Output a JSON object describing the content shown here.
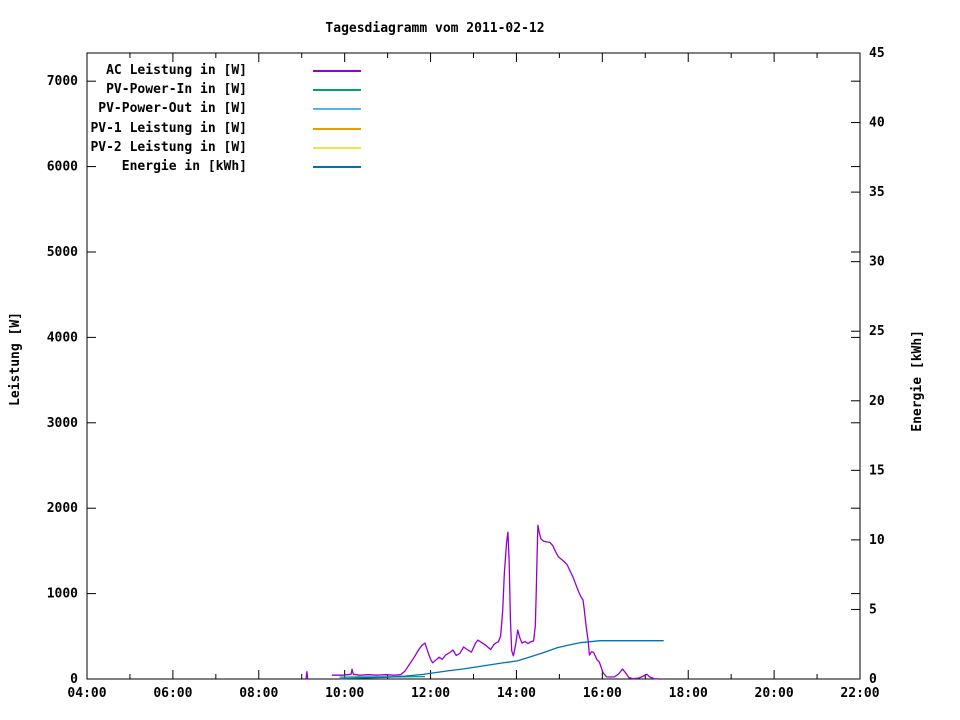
{
  "title": "Tagesdiagramm vom 2011-02-12",
  "axes": {
    "left_label": "Leistung [W]",
    "right_label": "Energie [kWh]",
    "axis_color": "#000000",
    "background": "#ffffff"
  },
  "chart_data": {
    "type": "line",
    "title": "Tagesdiagramm vom 2011-02-12",
    "xlabel": "",
    "x_unit": "time of day",
    "x_range_hours": [
      4,
      22
    ],
    "x_major_ticks_hours": [
      4,
      6,
      8,
      10,
      12,
      14,
      16,
      18,
      20,
      22
    ],
    "x_tick_labels": [
      "04:00",
      "06:00",
      "08:00",
      "10:00",
      "12:00",
      "14:00",
      "16:00",
      "18:00",
      "20:00",
      "22:00"
    ],
    "x_minor_ticks_hours": [
      5,
      7,
      9,
      11,
      13,
      15,
      17,
      19,
      21
    ],
    "y_left": {
      "label": "Leistung [W]",
      "range": [
        0,
        7330
      ],
      "ticks": [
        0,
        1000,
        2000,
        3000,
        4000,
        5000,
        6000,
        7000
      ]
    },
    "y_right": {
      "label": "Energie [kWh]",
      "range": [
        0,
        45
      ],
      "ticks": [
        0,
        5,
        10,
        15,
        20,
        25,
        30,
        35,
        40,
        45
      ]
    },
    "grid": false,
    "legend_position": "top-left-inside",
    "series": [
      {
        "name": "AC Leistung in [W]",
        "color": "#9400d3",
        "axis": "left",
        "points": [
          [
            9.1,
            0
          ],
          [
            9.12,
            85
          ],
          [
            9.14,
            0
          ],
          null,
          [
            9.7,
            45
          ],
          [
            9.95,
            45
          ],
          [
            10.05,
            50
          ],
          [
            10.15,
            55
          ],
          [
            10.17,
            115
          ],
          [
            10.2,
            55
          ],
          [
            10.35,
            45
          ],
          [
            10.55,
            50
          ],
          [
            10.75,
            45
          ],
          [
            10.95,
            50
          ],
          [
            11.15,
            45
          ],
          [
            11.3,
            50
          ],
          [
            11.4,
            90
          ],
          [
            11.5,
            165
          ],
          [
            11.58,
            225
          ],
          [
            11.65,
            280
          ],
          [
            11.72,
            340
          ],
          [
            11.8,
            395
          ],
          [
            11.87,
            420
          ],
          [
            11.93,
            330
          ],
          [
            12.0,
            230
          ],
          [
            12.05,
            190
          ],
          [
            12.13,
            225
          ],
          [
            12.2,
            255
          ],
          [
            12.27,
            230
          ],
          [
            12.35,
            280
          ],
          [
            12.45,
            310
          ],
          [
            12.52,
            340
          ],
          [
            12.6,
            275
          ],
          [
            12.68,
            300
          ],
          [
            12.77,
            375
          ],
          [
            12.85,
            345
          ],
          [
            12.95,
            315
          ],
          [
            13.05,
            420
          ],
          [
            13.1,
            455
          ],
          [
            13.18,
            430
          ],
          [
            13.27,
            400
          ],
          [
            13.33,
            375
          ],
          [
            13.4,
            345
          ],
          [
            13.47,
            400
          ],
          [
            13.53,
            425
          ],
          [
            13.58,
            435
          ],
          [
            13.63,
            500
          ],
          [
            13.68,
            800
          ],
          [
            13.72,
            1250
          ],
          [
            13.77,
            1600
          ],
          [
            13.8,
            1720
          ],
          [
            13.83,
            1400
          ],
          [
            13.86,
            700
          ],
          [
            13.89,
            330
          ],
          [
            13.93,
            270
          ],
          [
            13.98,
            400
          ],
          [
            14.03,
            574
          ],
          [
            14.08,
            480
          ],
          [
            14.13,
            420
          ],
          [
            14.2,
            440
          ],
          [
            14.27,
            415
          ],
          [
            14.33,
            435
          ],
          [
            14.4,
            445
          ],
          [
            14.44,
            620
          ],
          [
            14.46,
            1000
          ],
          [
            14.48,
            1450
          ],
          [
            14.5,
            1800
          ],
          [
            14.53,
            1720
          ],
          [
            14.57,
            1640
          ],
          [
            14.63,
            1615
          ],
          [
            14.7,
            1605
          ],
          [
            14.78,
            1600
          ],
          [
            14.85,
            1560
          ],
          [
            14.92,
            1480
          ],
          [
            14.98,
            1430
          ],
          [
            15.05,
            1400
          ],
          [
            15.12,
            1370
          ],
          [
            15.18,
            1340
          ],
          [
            15.25,
            1265
          ],
          [
            15.32,
            1190
          ],
          [
            15.38,
            1110
          ],
          [
            15.45,
            1020
          ],
          [
            15.5,
            965
          ],
          [
            15.55,
            925
          ],
          [
            15.58,
            810
          ],
          [
            15.62,
            630
          ],
          [
            15.65,
            515
          ],
          [
            15.67,
            445
          ],
          [
            15.7,
            281
          ],
          [
            15.75,
            320
          ],
          [
            15.8,
            310
          ],
          [
            15.87,
            230
          ],
          [
            15.93,
            199
          ],
          [
            16.02,
            70
          ],
          [
            16.1,
            25
          ],
          [
            16.2,
            23
          ],
          [
            16.28,
            25
          ],
          [
            16.38,
            60
          ],
          [
            16.47,
            117
          ],
          [
            16.53,
            80
          ],
          [
            16.62,
            15
          ],
          [
            16.72,
            5
          ],
          [
            16.85,
            10
          ],
          [
            16.98,
            40
          ],
          [
            17.04,
            55
          ],
          [
            17.1,
            25
          ],
          [
            17.2,
            5
          ],
          [
            17.3,
            2
          ]
        ]
      },
      {
        "name": "PV-Power-In in [W]",
        "color": "#009e73",
        "axis": "left",
        "points": [
          [
            9.88,
            22
          ],
          [
            10.3,
            25
          ],
          [
            10.8,
            25
          ],
          [
            11.3,
            25
          ],
          [
            11.87,
            28
          ]
        ]
      },
      {
        "name": "PV-Power-Out in [W]",
        "color": "#56b4e9",
        "axis": "left",
        "points": []
      },
      {
        "name": "PV-1 Leistung in [W]",
        "color": "#e69f00",
        "axis": "left",
        "points": []
      },
      {
        "name": "PV-2 Leistung in [W]",
        "color": "#f0e442",
        "axis": "left",
        "points": []
      },
      {
        "name": "Energie in [kWh]",
        "color": "#0072b2",
        "axis": "right",
        "points": [
          [
            9.9,
            0.02
          ],
          [
            10.5,
            0.08
          ],
          [
            11.0,
            0.13
          ],
          [
            11.4,
            0.2
          ],
          [
            11.83,
            0.33
          ],
          [
            12.05,
            0.43
          ],
          [
            12.4,
            0.58
          ],
          [
            12.75,
            0.72
          ],
          [
            13.08,
            0.87
          ],
          [
            13.38,
            1.01
          ],
          [
            13.68,
            1.16
          ],
          [
            14.02,
            1.3
          ],
          [
            14.32,
            1.59
          ],
          [
            14.62,
            1.88
          ],
          [
            14.95,
            2.24
          ],
          [
            15.25,
            2.46
          ],
          [
            15.48,
            2.61
          ],
          [
            15.72,
            2.68
          ],
          [
            15.95,
            2.75
          ],
          [
            17.43,
            2.75
          ]
        ]
      }
    ]
  }
}
